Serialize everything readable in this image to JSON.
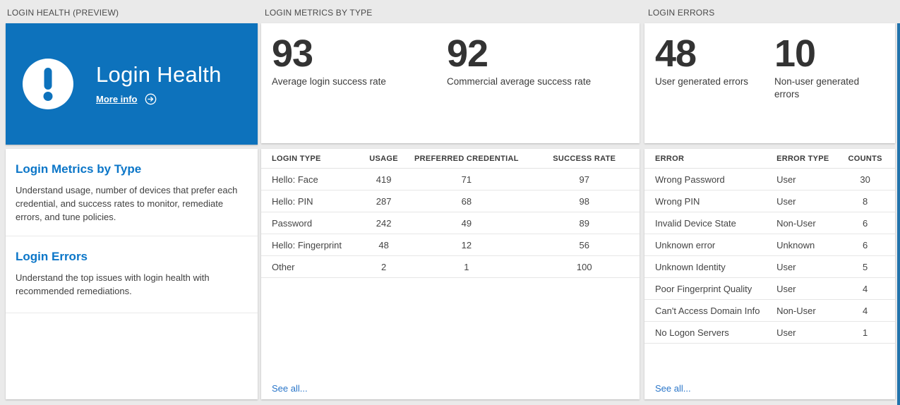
{
  "colors": {
    "tile_blue": "#0d72bc",
    "heading_blue": "#0b76c8",
    "link_blue": "#2a76c9",
    "number_color": "#333333",
    "background": "#eaeaea",
    "edge_strip_blue": "#2273ac"
  },
  "panels": {
    "login_health": {
      "header": "LOGIN HEALTH (PREVIEW)",
      "tile": {
        "title": "Login Health",
        "more_info_label": "More info",
        "icon": "exclamation-icon"
      },
      "sections": [
        {
          "title": "Login Metrics by Type",
          "description": "Understand usage, number of devices that prefer each credential, and success rates to monitor, remediate errors, and tune policies."
        },
        {
          "title": "Login Errors",
          "description": "Understand the top issues with login health with recommended remediations."
        }
      ]
    },
    "login_metrics": {
      "header": "LOGIN METRICS BY TYPE",
      "stats": [
        {
          "value": "93",
          "label": "Average login success rate"
        },
        {
          "value": "92",
          "label": "Commercial average success rate"
        }
      ],
      "table": {
        "columns": [
          "LOGIN TYPE",
          "USAGE",
          "PREFERRED CREDENTIAL",
          "SUCCESS RATE"
        ],
        "rows": [
          [
            "Hello: Face",
            "419",
            "71",
            "97"
          ],
          [
            "Hello: PIN",
            "287",
            "68",
            "98"
          ],
          [
            "Password",
            "242",
            "49",
            "89"
          ],
          [
            "Hello: Fingerprint",
            "48",
            "12",
            "56"
          ],
          [
            "Other",
            "2",
            "1",
            "100"
          ]
        ]
      },
      "see_all_label": "See all..."
    },
    "login_errors": {
      "header": "LOGIN ERRORS",
      "stats": [
        {
          "value": "48",
          "label": "User generated errors"
        },
        {
          "value": "10",
          "label": "Non-user generated errors"
        }
      ],
      "table": {
        "columns": [
          "ERROR",
          "ERROR TYPE",
          "COUNTS"
        ],
        "rows": [
          [
            "Wrong Password",
            "User",
            "30"
          ],
          [
            "Wrong PIN",
            "User",
            "8"
          ],
          [
            "Invalid Device State",
            "Non-User",
            "6"
          ],
          [
            "Unknown error",
            "Unknown",
            "6"
          ],
          [
            "Unknown Identity",
            "User",
            "5"
          ],
          [
            "Poor Fingerprint Quality",
            "User",
            "4"
          ],
          [
            "Can't Access Domain Info",
            "Non-User",
            "4"
          ],
          [
            "No Logon Servers",
            "User",
            "1"
          ]
        ]
      },
      "see_all_label": "See all..."
    }
  }
}
